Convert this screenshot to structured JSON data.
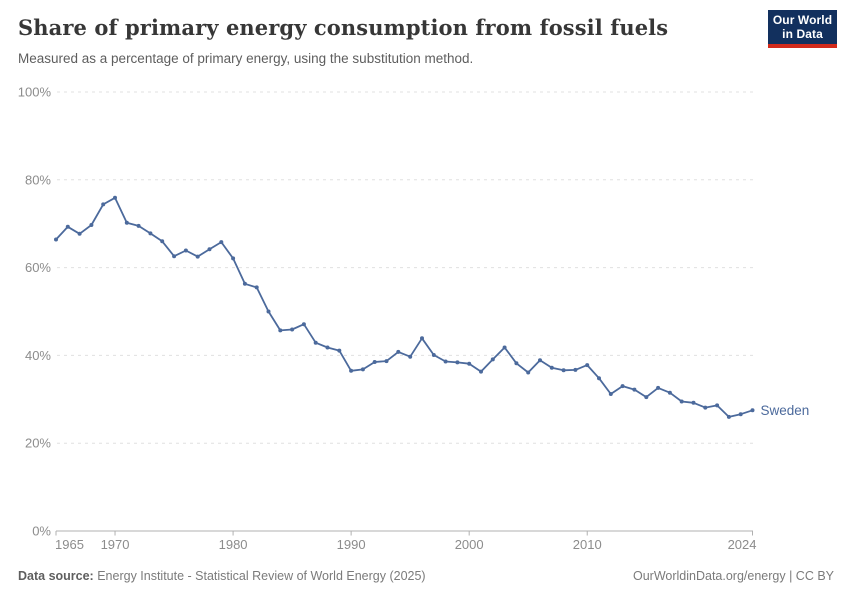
{
  "header": {
    "title": "Share of primary energy consumption from fossil fuels",
    "subtitle": "Measured as a percentage of primary energy, using the substitution method.",
    "logo": {
      "line1": "Our World",
      "line2": "in Data"
    }
  },
  "colors": {
    "accent": "#4C6A9C",
    "logo_navy": "#12305E",
    "logo_red": "#D22A1B",
    "grid": "#E0E0E0",
    "axis": "#B0B0B0",
    "axis_text": "#8C8C8C"
  },
  "chart_data": {
    "type": "line",
    "title": "Share of primary energy consumption from fossil fuels",
    "subtitle": "Measured as a percentage of primary energy, using the substitution method.",
    "xlabel": "",
    "ylabel": "",
    "xlim": [
      1965,
      2024
    ],
    "ylim": [
      0,
      100
    ],
    "x_ticks": [
      1965,
      1970,
      1980,
      1990,
      2000,
      2010,
      2024
    ],
    "y_ticks": [
      0,
      20,
      40,
      60,
      80,
      100
    ],
    "y_tick_suffix": "%",
    "grid": "horizontal-dashed",
    "legend": "end-of-line-label",
    "series": [
      {
        "name": "Sweden",
        "color": "#4C6A9C",
        "x": [
          1965,
          1966,
          1967,
          1968,
          1969,
          1970,
          1971,
          1972,
          1973,
          1974,
          1975,
          1976,
          1977,
          1978,
          1979,
          1980,
          1981,
          1982,
          1983,
          1984,
          1985,
          1986,
          1987,
          1988,
          1989,
          1990,
          1991,
          1992,
          1993,
          1994,
          1995,
          1996,
          1997,
          1998,
          1999,
          2000,
          2001,
          2002,
          2003,
          2004,
          2005,
          2006,
          2007,
          2008,
          2009,
          2010,
          2011,
          2012,
          2013,
          2014,
          2015,
          2016,
          2017,
          2018,
          2019,
          2020,
          2021,
          2022,
          2023,
          2024
        ],
        "values": [
          66.4,
          69.3,
          67.7,
          69.7,
          74.4,
          75.9,
          70.2,
          69.5,
          67.8,
          66.0,
          62.6,
          63.9,
          62.5,
          64.2,
          65.8,
          62.1,
          56.3,
          55.5,
          50.0,
          45.7,
          45.9,
          47.1,
          42.9,
          41.8,
          41.1,
          36.5,
          36.8,
          38.5,
          38.7,
          40.8,
          39.7,
          43.9,
          40.1,
          38.6,
          38.4,
          38.1,
          36.3,
          39.1,
          41.8,
          38.2,
          36.1,
          38.9,
          37.2,
          36.6,
          36.7,
          37.8,
          34.8,
          31.2,
          33.0,
          32.2,
          30.5,
          32.6,
          31.5,
          29.5,
          29.2,
          28.1,
          28.6,
          26.0,
          26.6,
          27.5
        ]
      }
    ]
  },
  "footer": {
    "datasource_label": "Data source:",
    "datasource_text": " Energy Institute - Statistical Review of World Energy (2025)",
    "credit": "OurWorldinData.org/energy | CC BY"
  }
}
